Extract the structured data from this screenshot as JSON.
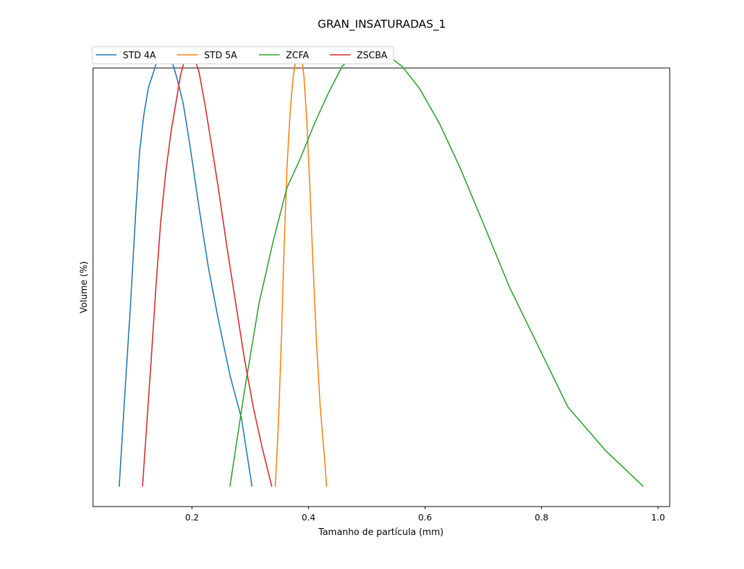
{
  "chart_data": {
    "type": "line",
    "title": "GRAN_INSATURADAS_1",
    "xlabel": "Tamanho de partícula (mm)",
    "ylabel": "Volume (%)",
    "xlim": [
      0.03,
      1.02
    ],
    "ylim": [
      -0.5,
      10.5
    ],
    "yticks_visible": false,
    "grid": false,
    "legend_position": "top-left, above plot, horizontal",
    "xticks": [
      {
        "value": 0.2,
        "label": "0.2"
      },
      {
        "value": 0.4,
        "label": "0.4"
      },
      {
        "value": 0.6,
        "label": "0.6"
      },
      {
        "value": 0.8,
        "label": "0.8"
      },
      {
        "value": 1.0,
        "label": "1.0"
      }
    ],
    "series": [
      {
        "name": "STD 4A",
        "color": "#1f77b4",
        "points": [
          [
            0.075,
            0.0
          ],
          [
            0.085,
            2.4
          ],
          [
            0.095,
            4.7
          ],
          [
            0.103,
            6.8
          ],
          [
            0.11,
            8.4
          ],
          [
            0.117,
            9.3
          ],
          [
            0.125,
            10.0
          ],
          [
            0.135,
            10.45
          ],
          [
            0.143,
            10.85
          ],
          [
            0.15,
            11.0
          ],
          [
            0.157,
            10.9
          ],
          [
            0.165,
            10.7
          ],
          [
            0.175,
            10.2
          ],
          [
            0.185,
            9.6
          ],
          [
            0.197,
            8.5
          ],
          [
            0.212,
            7.0
          ],
          [
            0.228,
            5.5
          ],
          [
            0.245,
            4.2
          ],
          [
            0.265,
            2.8
          ],
          [
            0.285,
            1.7
          ],
          [
            0.303,
            0.0
          ]
        ]
      },
      {
        "name": "STD 5A",
        "color": "#ff7f0e",
        "points": [
          [
            0.343,
            0.0
          ],
          [
            0.348,
            1.5
          ],
          [
            0.353,
            3.5
          ],
          [
            0.358,
            6.0
          ],
          [
            0.363,
            8.0
          ],
          [
            0.368,
            9.3
          ],
          [
            0.373,
            10.2
          ],
          [
            0.378,
            10.7
          ],
          [
            0.382,
            10.95
          ],
          [
            0.385,
            11.0
          ],
          [
            0.388,
            10.8
          ],
          [
            0.392,
            10.3
          ],
          [
            0.397,
            9.2
          ],
          [
            0.402,
            7.6
          ],
          [
            0.407,
            5.8
          ],
          [
            0.413,
            3.8
          ],
          [
            0.42,
            2.0
          ],
          [
            0.427,
            0.8
          ],
          [
            0.431,
            0.0
          ]
        ]
      },
      {
        "name": "ZCFA",
        "color": "#2ca02c",
        "points": [
          [
            0.265,
            0.0
          ],
          [
            0.29,
            2.4
          ],
          [
            0.315,
            4.6
          ],
          [
            0.34,
            6.2
          ],
          [
            0.363,
            7.5
          ],
          [
            0.385,
            8.2
          ],
          [
            0.41,
            9.1
          ],
          [
            0.435,
            9.9
          ],
          [
            0.458,
            10.55
          ],
          [
            0.482,
            10.85
          ],
          [
            0.508,
            11.0
          ],
          [
            0.532,
            10.85
          ],
          [
            0.56,
            10.55
          ],
          [
            0.59,
            10.0
          ],
          [
            0.625,
            9.1
          ],
          [
            0.66,
            8.0
          ],
          [
            0.7,
            6.6
          ],
          [
            0.745,
            5.0
          ],
          [
            0.795,
            3.5
          ],
          [
            0.845,
            2.0
          ],
          [
            0.91,
            0.9
          ],
          [
            0.975,
            0.0
          ]
        ]
      },
      {
        "name": "ZSCBA",
        "color": "#d62728",
        "points": [
          [
            0.115,
            0.0
          ],
          [
            0.122,
            1.5
          ],
          [
            0.13,
            3.2
          ],
          [
            0.138,
            5.0
          ],
          [
            0.146,
            6.6
          ],
          [
            0.155,
            7.9
          ],
          [
            0.164,
            8.9
          ],
          [
            0.172,
            9.6
          ],
          [
            0.18,
            10.3
          ],
          [
            0.188,
            10.75
          ],
          [
            0.195,
            11.0
          ],
          [
            0.203,
            10.8
          ],
          [
            0.212,
            10.4
          ],
          [
            0.222,
            9.6
          ],
          [
            0.232,
            8.7
          ],
          [
            0.245,
            7.5
          ],
          [
            0.26,
            6.0
          ],
          [
            0.275,
            4.6
          ],
          [
            0.29,
            3.2
          ],
          [
            0.305,
            2.0
          ],
          [
            0.32,
            1.0
          ],
          [
            0.337,
            0.0
          ]
        ]
      }
    ]
  }
}
